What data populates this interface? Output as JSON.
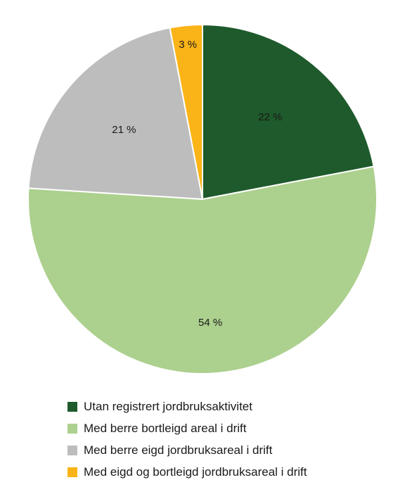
{
  "chart_data": {
    "type": "pie",
    "categories": [
      "Utan registrert jordbruksaktivitet",
      "Med berre bortleigd areal i drift",
      "Med berre eigd jordbruksareal i drift",
      "Med eigd og bortleigd jordbruksareal i drift"
    ],
    "values": [
      22,
      54,
      21,
      3
    ],
    "data_labels": [
      "22 %",
      "54 %",
      "21 %",
      "3 %"
    ],
    "colors": [
      "#1e5a2b",
      "#acd08e",
      "#bdbdbd",
      "#fbb417"
    ],
    "start_angle_deg": 0,
    "direction": "clockwise",
    "legend_position": "bottom-left",
    "title": ""
  }
}
